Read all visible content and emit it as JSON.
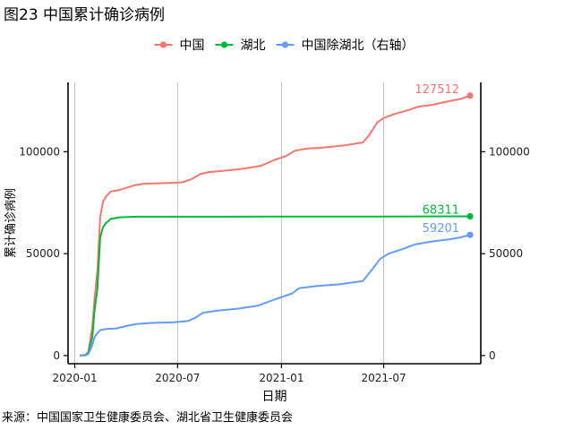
{
  "figure_title": "图23 中国累计确诊病例",
  "source_note": "来源：中国国家卫生健康委员会、湖北省卫生健康委员会",
  "chart_data": {
    "type": "line",
    "title": "图23 中国累计确诊病例",
    "xlabel": "日期",
    "ylabel": "累计确诊病例",
    "y2label": "",
    "xlim": [
      "2019-12-20",
      "2021-12-20"
    ],
    "ylim": [
      -4000,
      134000
    ],
    "y2lim": [
      -4000,
      134000
    ],
    "x_ticks": [
      "2020-01-01",
      "2020-07-01",
      "2021-01-01",
      "2021-07-01"
    ],
    "x_tick_labels": [
      "2020-01",
      "2020-07",
      "2021-01",
      "2021-07"
    ],
    "y_ticks": [
      0,
      50000,
      100000
    ],
    "y_tick_labels": [
      "0",
      "50000",
      "100000"
    ],
    "y2_ticks": [
      0,
      50000,
      100000
    ],
    "y2_tick_labels": [
      "0",
      "50000",
      "100000"
    ],
    "grid": "vertical-major",
    "legend_position": "top",
    "series": [
      {
        "name": "中国",
        "color": "#F8766D",
        "axis": "left",
        "end_label": "127512",
        "points": [
          [
            "2020-01-10",
            41
          ],
          [
            "2020-01-20",
            300
          ],
          [
            "2020-01-25",
            2000
          ],
          [
            "2020-02-01",
            14000
          ],
          [
            "2020-02-05",
            28000
          ],
          [
            "2020-02-10",
            42000
          ],
          [
            "2020-02-15",
            68000
          ],
          [
            "2020-02-20",
            75500
          ],
          [
            "2020-02-25",
            78000
          ],
          [
            "2020-03-05",
            80500
          ],
          [
            "2020-03-20",
            81200
          ],
          [
            "2020-04-15",
            83500
          ],
          [
            "2020-05-01",
            84300
          ],
          [
            "2020-06-15",
            84700
          ],
          [
            "2020-07-10",
            85000
          ],
          [
            "2020-07-25",
            86500
          ],
          [
            "2020-08-10",
            89000
          ],
          [
            "2020-08-25",
            90000
          ],
          [
            "2020-09-15",
            90500
          ],
          [
            "2020-10-20",
            91500
          ],
          [
            "2020-11-25",
            93000
          ],
          [
            "2020-12-20",
            96000
          ],
          [
            "2021-01-10",
            98000
          ],
          [
            "2021-01-25",
            100500
          ],
          [
            "2021-02-15",
            101500
          ],
          [
            "2021-03-15",
            102000
          ],
          [
            "2021-04-20",
            103000
          ],
          [
            "2021-05-25",
            104500
          ],
          [
            "2021-06-05",
            108000
          ],
          [
            "2021-06-20",
            114500
          ],
          [
            "2021-07-01",
            116500
          ],
          [
            "2021-07-20",
            118500
          ],
          [
            "2021-08-15",
            120500
          ],
          [
            "2021-08-30",
            122000
          ],
          [
            "2021-09-25",
            123000
          ],
          [
            "2021-10-20",
            124500
          ],
          [
            "2021-11-15",
            126000
          ],
          [
            "2021-12-01",
            127512
          ]
        ]
      },
      {
        "name": "湖北",
        "color": "#00BA38",
        "axis": "left",
        "end_label": "68311",
        "points": [
          [
            "2020-01-10",
            41
          ],
          [
            "2020-01-20",
            270
          ],
          [
            "2020-01-25",
            1200
          ],
          [
            "2020-02-01",
            9000
          ],
          [
            "2020-02-05",
            22000
          ],
          [
            "2020-02-10",
            33000
          ],
          [
            "2020-02-13",
            48000
          ],
          [
            "2020-02-15",
            58000
          ],
          [
            "2020-02-20",
            63000
          ],
          [
            "2020-02-25",
            65000
          ],
          [
            "2020-03-05",
            67000
          ],
          [
            "2020-03-20",
            67800
          ],
          [
            "2020-04-20",
            68128
          ],
          [
            "2020-07-01",
            68135
          ],
          [
            "2021-01-01",
            68149
          ],
          [
            "2021-07-01",
            68160
          ],
          [
            "2021-12-01",
            68311
          ]
        ]
      },
      {
        "name": "中国除湖北（右轴）",
        "color": "#619CFF",
        "axis": "right",
        "end_label": "59201",
        "points": [
          [
            "2020-01-10",
            0
          ],
          [
            "2020-01-20",
            30
          ],
          [
            "2020-01-25",
            800
          ],
          [
            "2020-02-01",
            5000
          ],
          [
            "2020-02-05",
            9000
          ],
          [
            "2020-02-10",
            11000
          ],
          [
            "2020-02-15",
            12500
          ],
          [
            "2020-02-25",
            13000
          ],
          [
            "2020-03-15",
            13300
          ],
          [
            "2020-04-01",
            14500
          ],
          [
            "2020-04-20",
            15500
          ],
          [
            "2020-05-15",
            16000
          ],
          [
            "2020-06-25",
            16300
          ],
          [
            "2020-07-20",
            17000
          ],
          [
            "2020-08-01",
            18500
          ],
          [
            "2020-08-15",
            21000
          ],
          [
            "2020-09-10",
            22000
          ],
          [
            "2020-10-15",
            23000
          ],
          [
            "2020-11-20",
            24500
          ],
          [
            "2020-12-20",
            27500
          ],
          [
            "2021-01-20",
            30500
          ],
          [
            "2021-02-01",
            33000
          ],
          [
            "2021-03-01",
            34000
          ],
          [
            "2021-04-15",
            35000
          ],
          [
            "2021-05-25",
            36500
          ],
          [
            "2021-06-10",
            42000
          ],
          [
            "2021-06-25",
            47500
          ],
          [
            "2021-07-10",
            50000
          ],
          [
            "2021-08-01",
            52000
          ],
          [
            "2021-08-25",
            54500
          ],
          [
            "2021-09-25",
            56000
          ],
          [
            "2021-10-25",
            57000
          ],
          [
            "2021-11-15",
            58000
          ],
          [
            "2021-12-01",
            59201
          ]
        ]
      }
    ]
  }
}
